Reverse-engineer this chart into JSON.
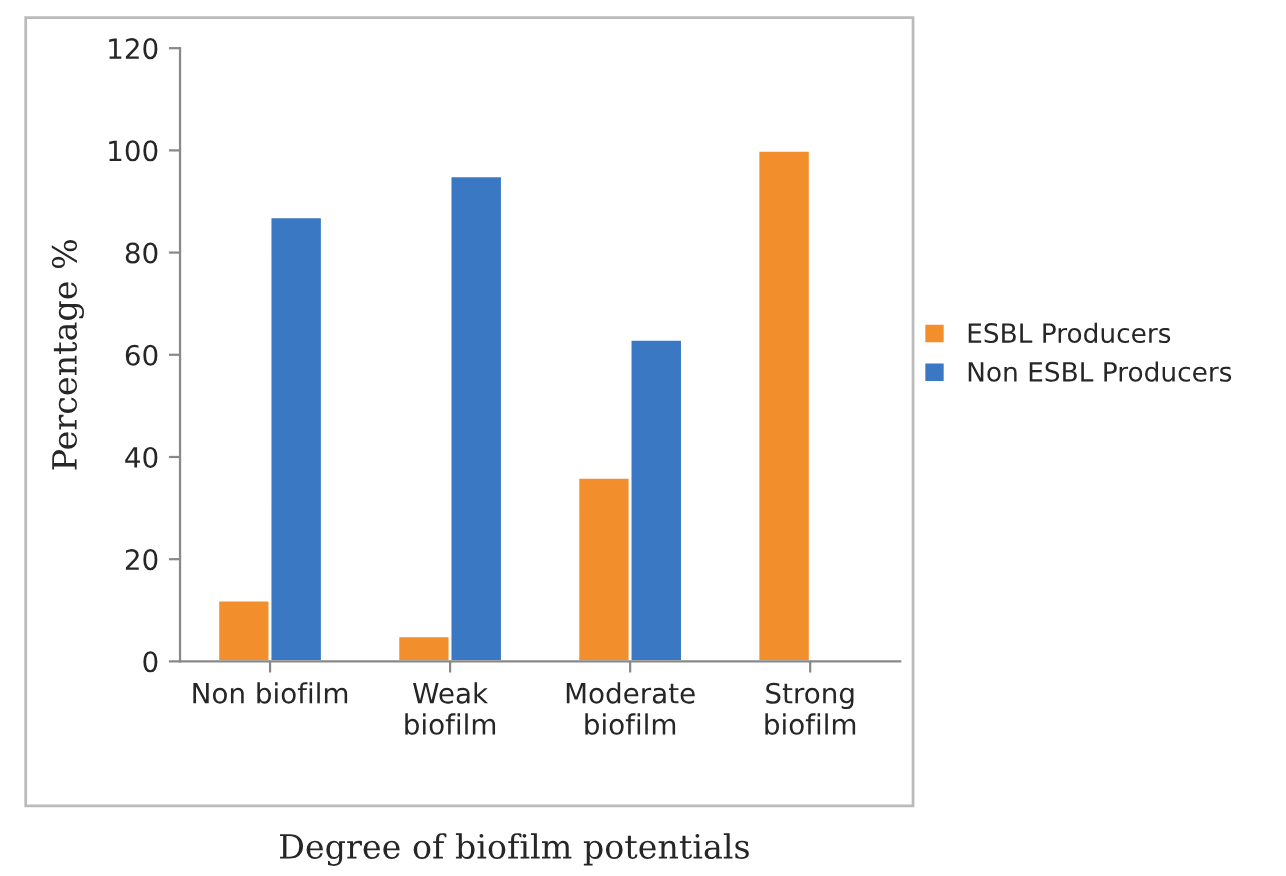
{
  "chart_data": {
    "type": "bar",
    "xlabel": "Degree of biofilm potentials",
    "ylabel": "Percentage %",
    "categories": [
      "Non biofilm",
      "Weak\nbiofilm",
      "Moderate\nbiofilm",
      "Strong\nbiofilm"
    ],
    "series": [
      {
        "name": "ESBL Producers",
        "color": "#f28e2b",
        "values": [
          12,
          5,
          36,
          100
        ]
      },
      {
        "name": "Non ESBL Producers",
        "color": "#3a78c4",
        "values": [
          87,
          95,
          63,
          null
        ]
      }
    ],
    "ylim": [
      0,
      120
    ],
    "yticks": [
      0,
      20,
      40,
      60,
      80,
      100,
      120
    ],
    "grid": false,
    "legend": "right"
  }
}
